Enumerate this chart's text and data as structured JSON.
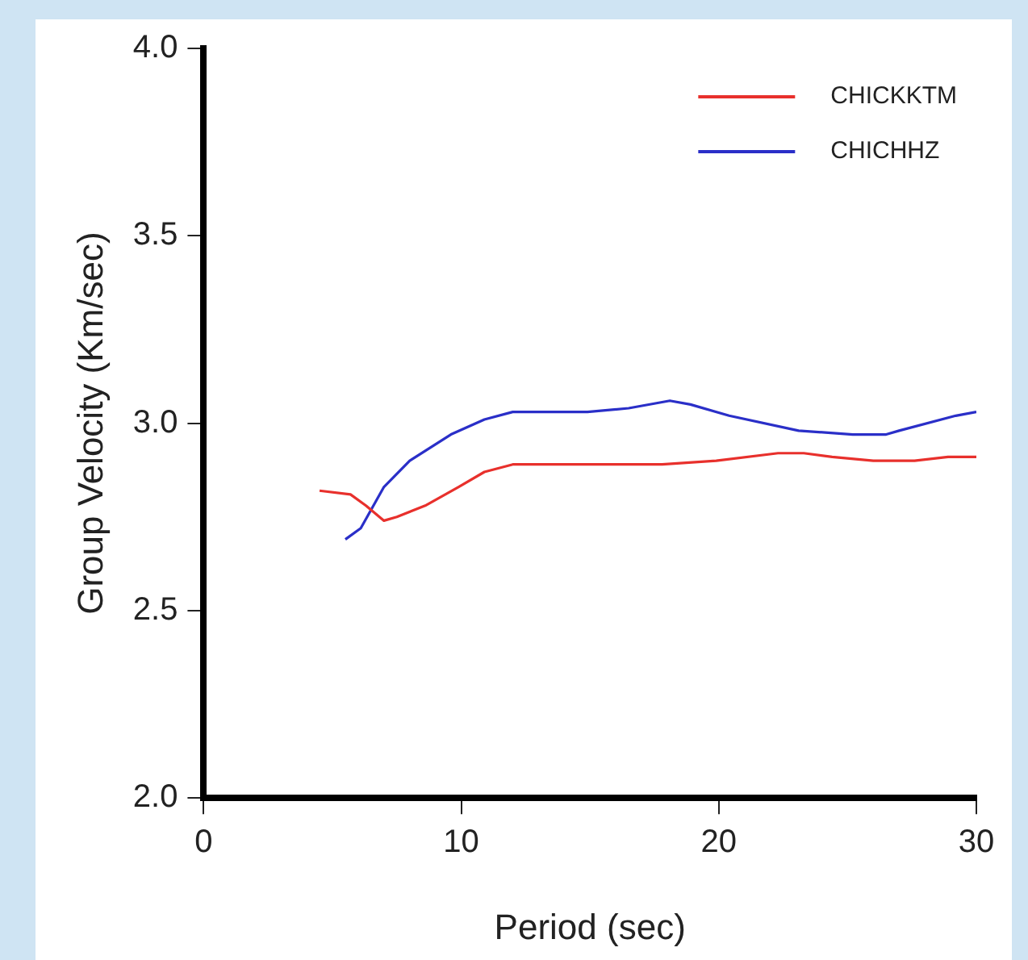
{
  "chart_data": {
    "type": "line",
    "xlabel": "Period (sec)",
    "ylabel": "Group Velocity (Km/sec)",
    "xlim": [
      0,
      30
    ],
    "xticks": [
      0,
      10,
      20,
      30
    ],
    "ylim": [
      2.0,
      4.0
    ],
    "yticks": [
      {
        "value": 2,
        "label": "2.0"
      },
      {
        "value": 2.5,
        "label": "2.5"
      },
      {
        "value": 3,
        "label": "3.0"
      },
      {
        "value": 3.5,
        "label": "3.5"
      },
      {
        "value": 4,
        "label": "4.0"
      }
    ],
    "grid": false,
    "legend": "top right",
    "marker": "none",
    "line_style": "solid",
    "series": [
      {
        "name": "CHICKKTM",
        "color": "#e8302c",
        "x": [
          4.5,
          5.7,
          6.3,
          7.0,
          7.5,
          8.6,
          9.9,
          10.9,
          12.0,
          13.1,
          15.2,
          17.8,
          19.9,
          22.3,
          23.3,
          24.4,
          26.0,
          27.6,
          28.9,
          30.0
        ],
        "values": [
          2.82,
          2.81,
          2.78,
          2.74,
          2.75,
          2.78,
          2.83,
          2.87,
          2.89,
          2.89,
          2.89,
          2.89,
          2.9,
          2.92,
          2.92,
          2.91,
          2.9,
          2.9,
          2.91,
          2.91
        ]
      },
      {
        "name": "CHICHHZ",
        "color": "#2a2fc8",
        "x": [
          5.5,
          6.1,
          7.0,
          8.0,
          9.6,
          10.9,
          12.0,
          13.1,
          14.9,
          16.5,
          18.1,
          18.9,
          20.4,
          23.1,
          25.2,
          26.5,
          27.0,
          29.2,
          30.0
        ],
        "values": [
          2.69,
          2.72,
          2.83,
          2.9,
          2.97,
          3.01,
          3.03,
          3.03,
          3.03,
          3.04,
          3.06,
          3.05,
          3.02,
          2.98,
          2.97,
          2.97,
          2.98,
          3.02,
          3.03
        ]
      }
    ]
  }
}
